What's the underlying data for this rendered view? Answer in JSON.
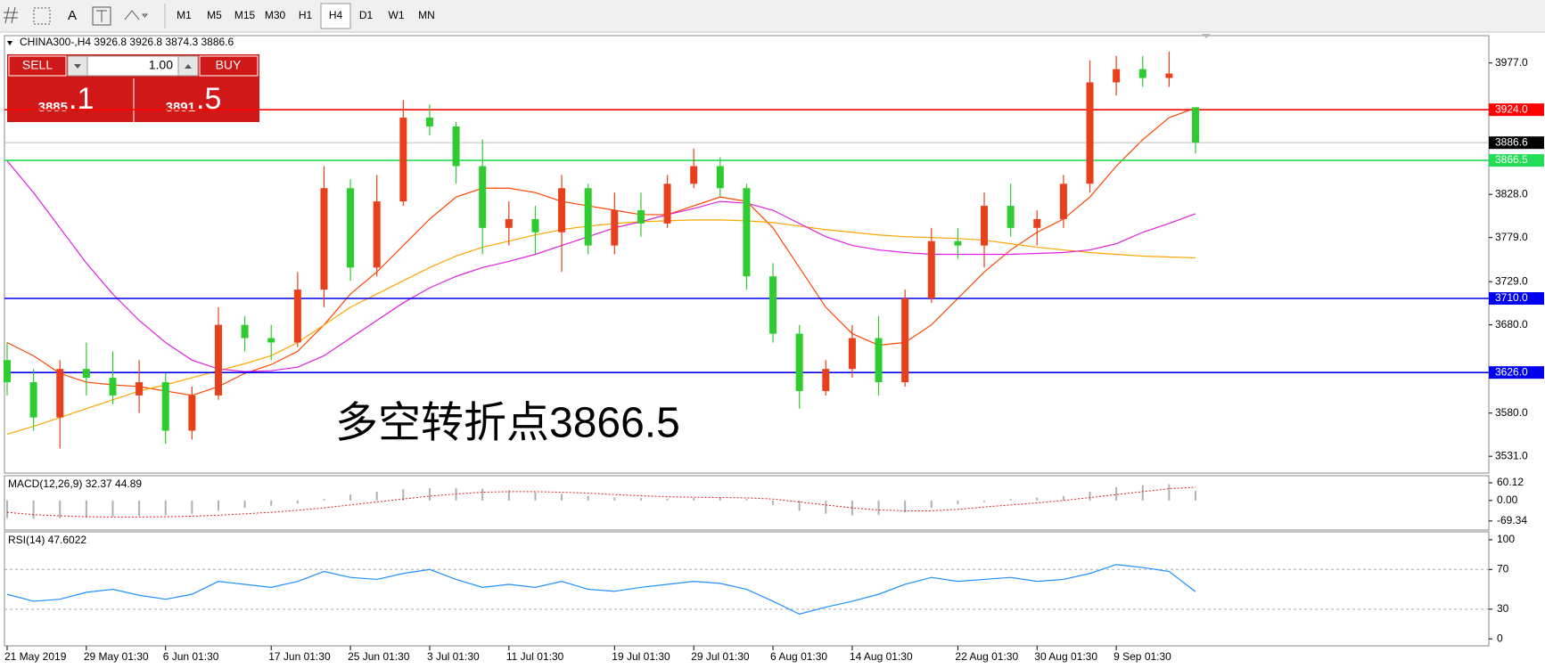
{
  "toolbar": {
    "tools": [
      "A"
    ],
    "timeframes": [
      "M1",
      "M5",
      "M15",
      "M30",
      "H1",
      "H4",
      "D1",
      "W1",
      "MN"
    ],
    "active_timeframe": 5
  },
  "trade_panel": {
    "sell": "SELL",
    "volume": "1.00",
    "buy": "BUY",
    "bid_main": "3885",
    "bid_big": ".1",
    "ask_main": "3891",
    "ask_big": ".5"
  },
  "chart_data": {
    "type": "candlestick",
    "title": "CHINA300-,H4  3926.8 3926.8 3874.3 3886.6",
    "annotation": "多空转折点3866.5",
    "categories": [
      "21 May 2019",
      null,
      null,
      "29 May 01:30",
      null,
      null,
      "6 Jun 01:30",
      null,
      null,
      null,
      "17 Jun 01:30",
      null,
      null,
      "25 Jun 01:30",
      null,
      null,
      "3 Jul 01:30",
      null,
      null,
      "11 Jul 01:30",
      null,
      null,
      null,
      "19 Jul 01:30",
      null,
      null,
      "29 Jul 01:30",
      null,
      null,
      "6 Aug 01:30",
      null,
      null,
      "14 Aug 01:30",
      null,
      null,
      null,
      "22 Aug 01:30",
      null,
      null,
      "30 Aug 01:30",
      null,
      null,
      "9 Sep 01:30",
      null,
      null,
      null
    ],
    "candles": [
      [
        3640,
        3660,
        3600,
        3615
      ],
      [
        3615,
        3630,
        3560,
        3575
      ],
      [
        3575,
        3640,
        3540,
        3630
      ],
      [
        3630,
        3660,
        3600,
        3620
      ],
      [
        3620,
        3650,
        3590,
        3600
      ],
      [
        3600,
        3640,
        3580,
        3615
      ],
      [
        3615,
        3625,
        3545,
        3560
      ],
      [
        3560,
        3610,
        3550,
        3600
      ],
      [
        3600,
        3700,
        3595,
        3680
      ],
      [
        3680,
        3690,
        3650,
        3665
      ],
      [
        3665,
        3680,
        3640,
        3660
      ],
      [
        3660,
        3740,
        3655,
        3720
      ],
      [
        3720,
        3860,
        3700,
        3835
      ],
      [
        3835,
        3845,
        3730,
        3745
      ],
      [
        3745,
        3850,
        3735,
        3820
      ],
      [
        3820,
        3935,
        3815,
        3915
      ],
      [
        3915,
        3930,
        3895,
        3905
      ],
      [
        3905,
        3910,
        3840,
        3860
      ],
      [
        3860,
        3890,
        3760,
        3790
      ],
      [
        3790,
        3820,
        3770,
        3800
      ],
      [
        3800,
        3815,
        3760,
        3785
      ],
      [
        3785,
        3850,
        3740,
        3835
      ],
      [
        3835,
        3840,
        3760,
        3770
      ],
      [
        3770,
        3830,
        3760,
        3810
      ],
      [
        3810,
        3830,
        3780,
        3795
      ],
      [
        3795,
        3850,
        3790,
        3840
      ],
      [
        3840,
        3880,
        3835,
        3860
      ],
      [
        3860,
        3870,
        3825,
        3835
      ],
      [
        3835,
        3840,
        3720,
        3735
      ],
      [
        3735,
        3750,
        3660,
        3670
      ],
      [
        3670,
        3680,
        3585,
        3605
      ],
      [
        3605,
        3640,
        3600,
        3630
      ],
      [
        3630,
        3680,
        3620,
        3665
      ],
      [
        3665,
        3690,
        3600,
        3615
      ],
      [
        3615,
        3720,
        3610,
        3710
      ],
      [
        3710,
        3790,
        3705,
        3775
      ],
      [
        3775,
        3790,
        3755,
        3770
      ],
      [
        3770,
        3830,
        3745,
        3815
      ],
      [
        3815,
        3840,
        3780,
        3790
      ],
      [
        3790,
        3810,
        3770,
        3800
      ],
      [
        3800,
        3850,
        3790,
        3840
      ],
      [
        3840,
        3980,
        3830,
        3955
      ],
      [
        3955,
        3985,
        3940,
        3970
      ],
      [
        3970,
        3985,
        3950,
        3960
      ],
      [
        3960,
        3990,
        3950,
        3965
      ],
      [
        3926.8,
        3926.8,
        3874.3,
        3886.6
      ]
    ],
    "up_color": "#e8401c",
    "down_color": "#2fcc2f",
    "ylim": [
      3512,
      4008
    ],
    "yticks": [
      {
        "value": 3977,
        "label": "3977.0"
      },
      {
        "value": 3828,
        "label": "3828.0"
      },
      {
        "value": 3779,
        "label": "3779.0"
      },
      {
        "value": 3729,
        "label": "3729.0"
      },
      {
        "value": 3680,
        "label": "3680.0"
      },
      {
        "value": 3580,
        "label": "3580.0"
      },
      {
        "value": 3531,
        "label": "3531.0"
      }
    ],
    "ma": [
      {
        "color": "#ff4500",
        "values": [
          3660,
          3645,
          3625,
          3615,
          3612,
          3610,
          3605,
          3600,
          3610,
          3625,
          3635,
          3650,
          3680,
          3715,
          3740,
          3770,
          3800,
          3825,
          3835,
          3835,
          3830,
          3820,
          3815,
          3810,
          3805,
          3805,
          3815,
          3825,
          3820,
          3790,
          3745,
          3700,
          3670,
          3657,
          3660,
          3680,
          3710,
          3740,
          3765,
          3785,
          3800,
          3825,
          3860,
          3890,
          3915,
          3926
        ]
      },
      {
        "color": "#ffa500",
        "values": [
          3556,
          3565,
          3575,
          3585,
          3595,
          3605,
          3612,
          3620,
          3628,
          3636,
          3645,
          3660,
          3680,
          3700,
          3715,
          3730,
          3745,
          3758,
          3768,
          3775,
          3782,
          3788,
          3792,
          3795,
          3797,
          3798,
          3799,
          3799,
          3798,
          3796,
          3792,
          3788,
          3785,
          3782,
          3780,
          3779,
          3778,
          3776,
          3772,
          3768,
          3765,
          3762,
          3760,
          3758,
          3757,
          3756
        ]
      },
      {
        "color": "#e020e0",
        "values": [
          3866,
          3830,
          3790,
          3750,
          3715,
          3685,
          3660,
          3640,
          3630,
          3627,
          3628,
          3632,
          3645,
          3665,
          3685,
          3705,
          3722,
          3735,
          3745,
          3752,
          3760,
          3770,
          3780,
          3790,
          3797,
          3805,
          3812,
          3820,
          3818,
          3810,
          3795,
          3780,
          3770,
          3765,
          3762,
          3760,
          3760,
          3760,
          3760,
          3761,
          3762,
          3765,
          3772,
          3785,
          3795,
          3806
        ]
      }
    ],
    "levels": [
      {
        "value": 3924,
        "label": "3924.0",
        "color": "#ff0000"
      },
      {
        "value": 3866.5,
        "color": "#22dd55"
      },
      {
        "value": 3710,
        "label": "3710.0",
        "color": "#0000ee"
      },
      {
        "value": 3626,
        "label": "3626.0",
        "color": "#0000ee"
      }
    ],
    "current": 3886.6,
    "indicators": [
      {
        "type": "macd",
        "title": "MACD(12,26,9) 32.37 44.89",
        "ylim": [
          -100,
          84
        ],
        "yticks": [
          60.12,
          {
            "value": 0,
            "label": "0.00"
          },
          -69.34
        ],
        "hist_color": "#b0b0b0",
        "signal_color": "#e02020",
        "histogram": [
          -60,
          -62,
          -60,
          -58,
          -55,
          -52,
          -50,
          -45,
          -35,
          -25,
          -18,
          -10,
          5,
          20,
          30,
          38,
          42,
          42,
          40,
          35,
          28,
          22,
          15,
          10,
          8,
          6,
          8,
          10,
          5,
          -15,
          -35,
          -45,
          -50,
          -48,
          -40,
          -25,
          -12,
          -5,
          5,
          10,
          15,
          30,
          45,
          52,
          55,
          32.37
        ],
        "signal": [
          -40,
          -48,
          -52,
          -55,
          -56,
          -56,
          -55,
          -53,
          -50,
          -45,
          -40,
          -33,
          -25,
          -15,
          -5,
          5,
          15,
          22,
          28,
          30,
          30,
          28,
          25,
          20,
          16,
          13,
          11,
          10,
          9,
          5,
          -5,
          -15,
          -25,
          -32,
          -35,
          -35,
          -30,
          -22,
          -15,
          -8,
          0,
          10,
          20,
          30,
          40,
          44.89
        ]
      },
      {
        "type": "rsi",
        "title": "RSI(14) 47.6022",
        "ylim": [
          -7,
          108
        ],
        "yticks": [
          100,
          70,
          30,
          0
        ],
        "levels": [
          70,
          30
        ],
        "color": "#1e90ff",
        "values": [
          45,
          38,
          40,
          47,
          50,
          44,
          40,
          45,
          58,
          55,
          52,
          58,
          68,
          62,
          60,
          66,
          70,
          60,
          52,
          55,
          52,
          58,
          50,
          48,
          52,
          55,
          58,
          56,
          50,
          38,
          25,
          32,
          38,
          45,
          55,
          62,
          58,
          60,
          62,
          58,
          60,
          66,
          75,
          72,
          68,
          47.6022
        ]
      }
    ]
  }
}
